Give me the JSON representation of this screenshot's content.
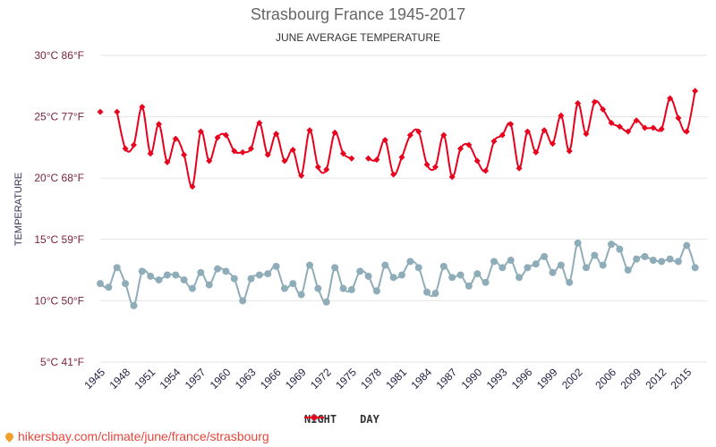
{
  "chart_data": {
    "type": "line",
    "title": "Strasbourg France 1945-2017",
    "subtitle": "JUNE AVERAGE TEMPERATURE",
    "ylabel": "TEMPERATURE",
    "ylim": [
      5,
      30
    ],
    "yticks": [
      {
        "value": 30,
        "label": "30°C 86°F"
      },
      {
        "value": 25,
        "label": "25°C 77°F"
      },
      {
        "value": 20,
        "label": "20°C 68°F"
      },
      {
        "value": 15,
        "label": "15°C 59°F"
      },
      {
        "value": 10,
        "label": "10°C 50°F"
      },
      {
        "value": 5,
        "label": "5°C 41°F"
      }
    ],
    "xlim": [
      1945,
      2017
    ],
    "xticks": [
      1945,
      1948,
      1951,
      1954,
      1957,
      1960,
      1963,
      1966,
      1969,
      1972,
      1975,
      1978,
      1981,
      1984,
      1987,
      1990,
      1993,
      1996,
      1999,
      2002,
      2006,
      2009,
      2012,
      2015
    ],
    "grid": true,
    "legend_placement": "bottom",
    "series": [
      {
        "name": "NIGHT",
        "color": "#8fadb9",
        "marker": "circle",
        "x": [
          1945,
          1946,
          1947,
          1948,
          1949,
          1950,
          1951,
          1952,
          1953,
          1954,
          1955,
          1956,
          1957,
          1958,
          1959,
          1960,
          1961,
          1962,
          1963,
          1964,
          1965,
          1966,
          1967,
          1968,
          1969,
          1970,
          1971,
          1972,
          1973,
          1974,
          1975,
          1976,
          1977,
          1978,
          1979,
          1980,
          1981,
          1982,
          1983,
          1984,
          1985,
          1986,
          1987,
          1988,
          1989,
          1990,
          1991,
          1992,
          1993,
          1994,
          1995,
          1996,
          1997,
          1998,
          1999,
          2000,
          2001,
          2002,
          2003,
          2004,
          2005,
          2006,
          2007,
          2008,
          2009,
          2010,
          2011,
          2012,
          2013,
          2014,
          2015,
          2016,
          2017
        ],
        "values": [
          11.4,
          11.1,
          12.7,
          11.4,
          9.6,
          12.4,
          12.0,
          11.7,
          12.1,
          12.1,
          11.7,
          11.0,
          12.3,
          11.3,
          12.6,
          12.4,
          11.8,
          10.0,
          11.8,
          12.1,
          12.2,
          12.8,
          11.0,
          11.4,
          10.5,
          12.9,
          11.0,
          9.9,
          12.7,
          11.0,
          10.9,
          12.4,
          12.0,
          10.8,
          12.9,
          11.9,
          12.1,
          13.2,
          12.7,
          10.7,
          10.6,
          12.8,
          11.9,
          12.1,
          11.2,
          12.2,
          11.5,
          13.2,
          12.7,
          13.3,
          11.9,
          12.7,
          13.0,
          13.6,
          12.3,
          12.9,
          11.5,
          14.7,
          12.7,
          13.7,
          12.9,
          14.6,
          14.2,
          12.5,
          13.4,
          13.6,
          13.3,
          13.2,
          13.4,
          13.2,
          14.5,
          12.7,
          null
        ]
      },
      {
        "name": "DAY",
        "color": "#e8001c",
        "marker": "diamond",
        "x": [
          1945,
          1946,
          1947,
          1948,
          1949,
          1950,
          1951,
          1952,
          1953,
          1954,
          1955,
          1956,
          1957,
          1958,
          1959,
          1960,
          1961,
          1962,
          1963,
          1964,
          1965,
          1966,
          1967,
          1968,
          1969,
          1970,
          1971,
          1972,
          1973,
          1974,
          1975,
          1976,
          1977,
          1978,
          1979,
          1980,
          1981,
          1982,
          1983,
          1984,
          1985,
          1986,
          1987,
          1988,
          1989,
          1990,
          1991,
          1992,
          1993,
          1994,
          1995,
          1996,
          1997,
          1998,
          1999,
          2000,
          2001,
          2002,
          2003,
          2004,
          2005,
          2006,
          2007,
          2008,
          2009,
          2010,
          2011,
          2012,
          2013,
          2014,
          2015,
          2016,
          2017
        ],
        "values": [
          25.4,
          null,
          25.4,
          22.4,
          22.7,
          25.8,
          22.0,
          24.4,
          21.3,
          23.2,
          21.9,
          19.3,
          23.8,
          21.4,
          23.3,
          23.5,
          22.2,
          22.1,
          22.4,
          24.5,
          21.9,
          23.6,
          21.4,
          22.3,
          20.2,
          23.9,
          20.9,
          20.7,
          23.7,
          22.0,
          21.6,
          null,
          21.6,
          21.5,
          23.1,
          20.3,
          21.7,
          23.5,
          23.8,
          21.1,
          20.9,
          23.5,
          20.1,
          22.4,
          22.7,
          21.4,
          20.6,
          23.0,
          23.5,
          24.4,
          20.8,
          23.8,
          22.1,
          23.9,
          22.8,
          25.1,
          22.2,
          26.1,
          23.6,
          26.2,
          25.6,
          24.5,
          24.2,
          23.8,
          24.7,
          24.1,
          24.1,
          24.0,
          26.5,
          24.9,
          23.8,
          27.1,
          null
        ]
      }
    ]
  },
  "footer": {
    "url_text": "hikersbay.com/climate/june/france/strasbourg"
  }
}
